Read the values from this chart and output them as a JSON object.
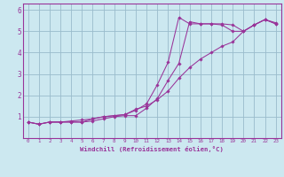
{
  "xlabel": "Windchill (Refroidissement éolien,°C)",
  "bg_color": "#cce8f0",
  "line_color": "#993399",
  "grid_color": "#99bbcc",
  "xlim": [
    -0.5,
    23.5
  ],
  "ylim": [
    0,
    6.3
  ],
  "xticks": [
    0,
    1,
    2,
    3,
    4,
    5,
    6,
    7,
    8,
    9,
    10,
    11,
    12,
    13,
    14,
    15,
    16,
    17,
    18,
    19,
    20,
    21,
    22,
    23
  ],
  "yticks": [
    1,
    2,
    3,
    4,
    5,
    6
  ],
  "ytick_labels": [
    "1",
    "2",
    "3",
    "4",
    "5",
    "6"
  ],
  "line1_x": [
    0,
    1,
    2,
    3,
    4,
    5,
    6,
    7,
    8,
    9,
    10,
    11,
    12,
    13,
    14,
    15,
    16,
    17,
    18,
    19,
    20,
    21,
    22,
    23
  ],
  "line1_y": [
    0.75,
    0.65,
    0.75,
    0.75,
    0.75,
    0.75,
    0.8,
    0.9,
    1.0,
    1.05,
    1.05,
    1.4,
    1.85,
    2.7,
    3.5,
    5.45,
    5.35,
    5.35,
    5.35,
    5.3,
    5.0,
    5.3,
    5.55,
    5.4
  ],
  "line2_x": [
    0,
    1,
    2,
    3,
    4,
    5,
    6,
    7,
    8,
    9,
    10,
    11,
    12,
    13,
    14,
    15,
    16,
    17,
    18,
    19,
    20,
    21,
    22,
    23
  ],
  "line2_y": [
    0.75,
    0.65,
    0.75,
    0.75,
    0.75,
    0.75,
    0.9,
    1.0,
    1.05,
    1.1,
    1.3,
    1.6,
    2.5,
    3.55,
    5.65,
    5.35,
    5.35,
    5.35,
    5.3,
    5.0,
    5.0,
    5.3,
    5.55,
    5.35
  ],
  "line3_x": [
    0,
    1,
    2,
    3,
    4,
    5,
    6,
    7,
    8,
    9,
    10,
    11,
    12,
    13,
    14,
    15,
    16,
    17,
    18,
    19,
    20,
    21,
    22,
    23
  ],
  "line3_y": [
    0.75,
    0.65,
    0.75,
    0.75,
    0.8,
    0.85,
    0.9,
    1.0,
    1.05,
    1.1,
    1.35,
    1.5,
    1.8,
    2.2,
    2.8,
    3.3,
    3.7,
    4.0,
    4.3,
    4.5,
    5.0,
    5.3,
    5.55,
    5.35
  ]
}
